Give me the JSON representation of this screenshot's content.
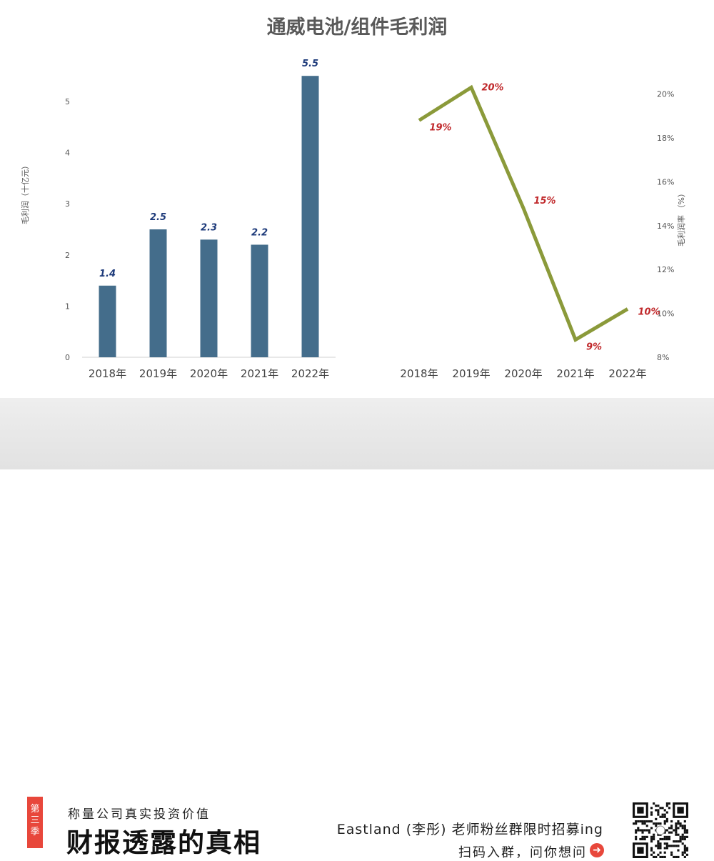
{
  "chart_data": [
    {
      "type": "bar",
      "title": "通威电池/组件毛利润",
      "categories": [
        "2018年",
        "2019年",
        "2020年",
        "2021年",
        "2022年"
      ],
      "values": [
        1.4,
        2.5,
        2.3,
        2.2,
        5.5
      ],
      "data_labels": [
        "1.4",
        "2.5",
        "2.3",
        "2.2",
        "5.5"
      ],
      "ylabel": "毛利润（十亿元）",
      "ylim": [
        0,
        5.5
      ],
      "yticks": [
        "0",
        "1",
        "2",
        "3",
        "4",
        "5"
      ],
      "bar_color": "#446d8b",
      "label_color": "#1d3a7a",
      "grid": false
    },
    {
      "type": "line",
      "categories": [
        "2018年",
        "2019年",
        "2020年",
        "2021年",
        "2022年"
      ],
      "values": [
        18.8,
        20.3,
        14.8,
        8.8,
        10.2
      ],
      "data_labels": [
        "19%",
        "20%",
        "15%",
        "9%",
        "10%"
      ],
      "ylabel": "毛利润率 （%）",
      "ylim": [
        8,
        20
      ],
      "yticks": [
        "8%",
        "10%",
        "12%",
        "14%",
        "16%",
        "18%",
        "20%"
      ],
      "yaxis_position": "right",
      "line_color": "#8b9a3a",
      "label_color": "#c0282b",
      "grid": false
    }
  ],
  "footer": {
    "season_badge": [
      "第",
      "三",
      "季"
    ],
    "tagline": "称量公司真实投资价值",
    "brand": "财报透露的真相",
    "recruit": "Eastland (李彤) 老师粉丝群限时招募ing",
    "scan": "扫码入群，问你想问",
    "arrow_icon": "arrow-right-circle-icon",
    "qr_icon": "qr-code-icon",
    "accent_color": "#e8473b"
  }
}
